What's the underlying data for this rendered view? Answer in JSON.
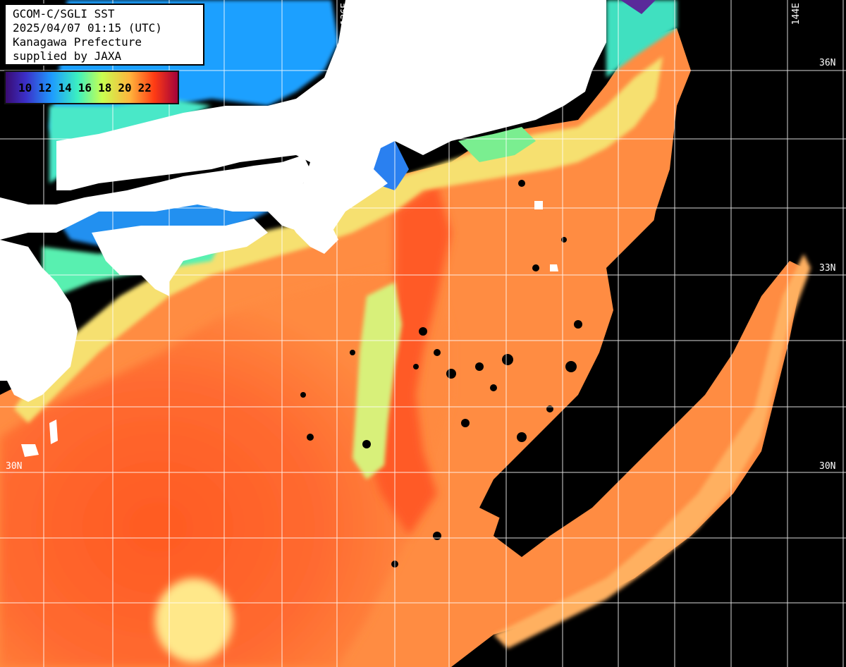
{
  "title": {
    "line1": "GCOM-C/SGLI SST",
    "line2": "2025/04/07 01:15 (UTC)",
    "line3": "Kanagawa Prefecture",
    "line4": "supplied by JAXA"
  },
  "legend": {
    "ticks": [
      "10",
      "12",
      "14",
      "16",
      "18",
      "20",
      "22"
    ],
    "colors": [
      "#3a0a6e",
      "#3b2fc8",
      "#1e9bff",
      "#3cf0c0",
      "#c8ff50",
      "#ffb43c",
      "#ff3c14",
      "#a0003c"
    ]
  },
  "grid_labels": {
    "lon_136": "136E",
    "lon_144": "144E",
    "lat_36": "36N",
    "lat_33": "33N",
    "lat_33_left": "33",
    "lat_30_right": "30N",
    "lat_30_left": "30N"
  },
  "palette": {
    "land": "#ffffff",
    "cloud": "#000000",
    "cold": "#1e8cff",
    "cool": "#5af0a0",
    "mild": "#ffe070",
    "warm": "#ff9a48",
    "hot": "#ff5a28"
  }
}
